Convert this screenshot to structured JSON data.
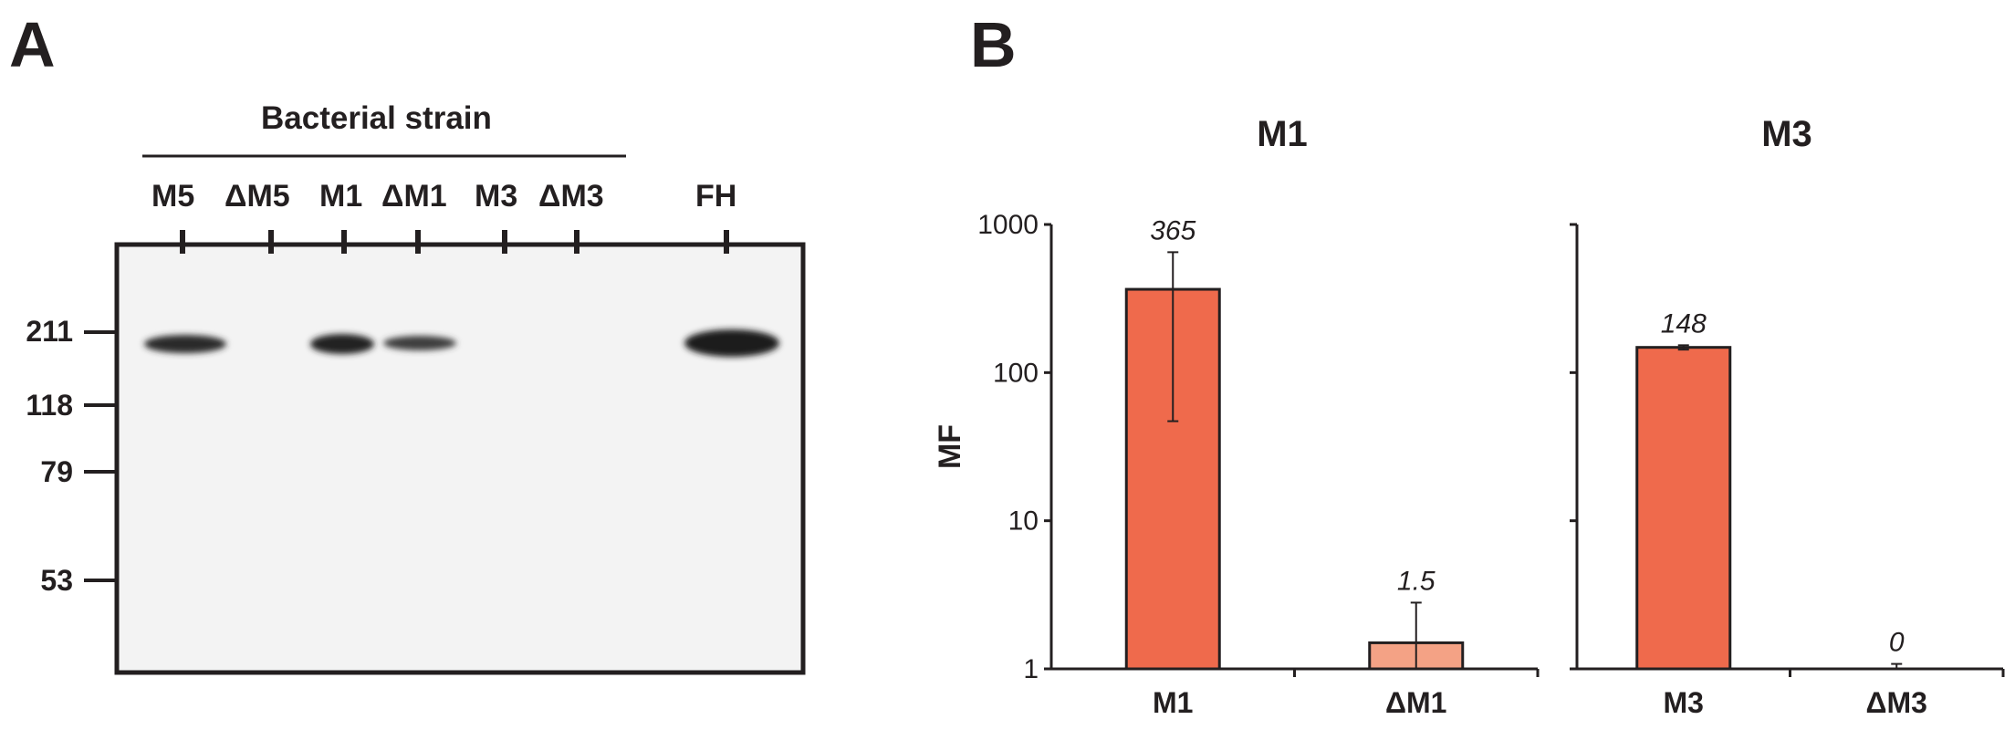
{
  "panel_a": {
    "letter": "A",
    "group_label": "Bacterial strain",
    "lanes": [
      "M5",
      "ΔM5",
      "M1",
      "ΔM1",
      "M3",
      "ΔM3",
      "FH"
    ],
    "markers": [
      "211",
      "118",
      "79",
      "53"
    ]
  },
  "panel_b": {
    "letter": "B",
    "ylabel": "MF"
  },
  "chart_data": [
    {
      "type": "bar",
      "title": "M1",
      "ylabel": "MF",
      "yscale": "log",
      "ylim": [
        1,
        1000
      ],
      "yticks": [
        "1",
        "10",
        "100",
        "1000"
      ],
      "categories": [
        "M1",
        "ΔM1"
      ],
      "values": [
        365,
        1.5
      ],
      "value_labels": [
        "365",
        "1.5"
      ],
      "error_low": [
        47,
        1
      ],
      "error_high": [
        650,
        2.8
      ],
      "colors": [
        "#ef6a4c",
        "#f4a285"
      ]
    },
    {
      "type": "bar",
      "title": "M3",
      "yscale": "log",
      "ylim": [
        1,
        1000
      ],
      "categories": [
        "M3",
        "ΔM3"
      ],
      "values": [
        148,
        0
      ],
      "value_labels": [
        "148",
        "0"
      ],
      "error_low": [
        143,
        1
      ],
      "error_high": [
        153,
        1.08
      ],
      "colors": [
        "#ef6a4c",
        "#f4a285"
      ]
    }
  ]
}
